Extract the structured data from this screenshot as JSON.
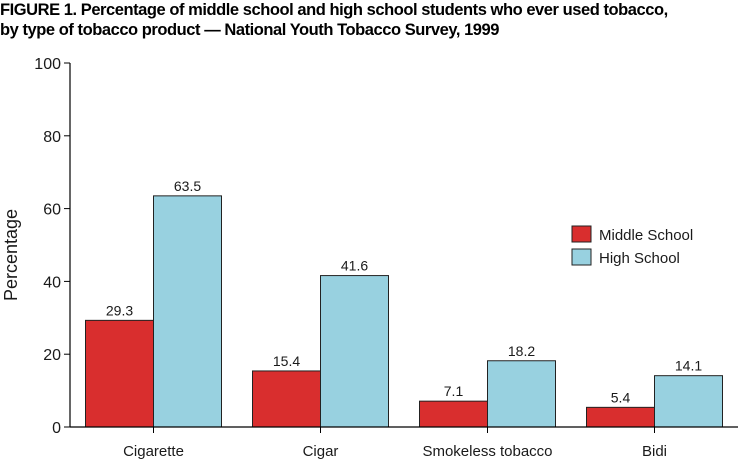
{
  "chart_data": {
    "type": "bar",
    "title_line1": "FIGURE 1. Percentage of middle school and high school students who ever used tobacco,",
    "title_line2": "by type of tobacco product — National Youth Tobacco Survey, 1999",
    "title": "FIGURE 1. Percentage of middle school and high school students who ever used tobacco, by type of tobacco product — National Youth Tobacco Survey, 1999",
    "xlabel": "",
    "ylabel": "Percentage",
    "ylim": [
      0,
      100
    ],
    "yticks": [
      0,
      20,
      40,
      60,
      80,
      100
    ],
    "categories": [
      "Cigarette",
      "Cigar",
      "Smokeless tobacco",
      "Bidi"
    ],
    "series": [
      {
        "name": "Middle School",
        "color": "#d92e2e",
        "values": [
          29.3,
          15.4,
          7.1,
          5.4
        ],
        "labels": [
          "29.3",
          "15.4",
          "7.1",
          "5.4"
        ]
      },
      {
        "name": "High School",
        "color": "#98d1e0",
        "values": [
          63.5,
          41.6,
          18.2,
          14.1
        ],
        "labels": [
          "63.5",
          "41.6",
          "18.2",
          "14.1"
        ]
      }
    ],
    "legend_position": "right",
    "grid": false
  }
}
